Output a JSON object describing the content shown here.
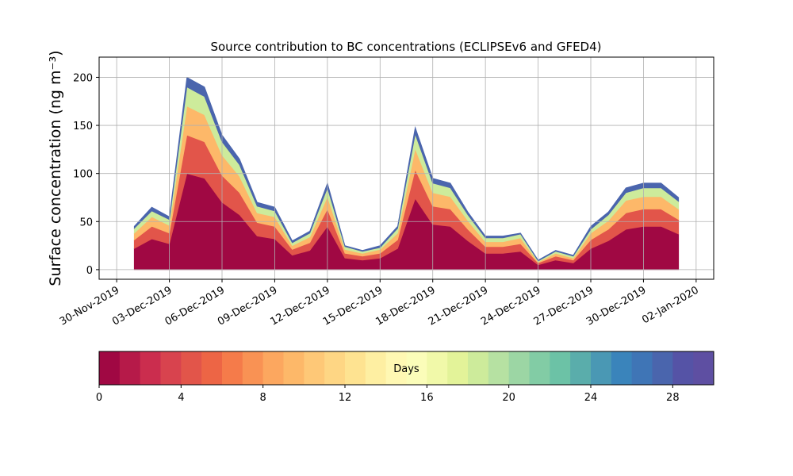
{
  "chart_data": {
    "type": "stacked_area",
    "title": "Source contribution to BC concentrations (ECLIPSEv6 and GFED4)",
    "y_label": "Surface concentration (ng m⁻³)",
    "x": [
      "01-Dec-2019",
      "02-Dec-2019",
      "03-Dec-2019",
      "04-Dec-2019",
      "05-Dec-2019",
      "06-Dec-2019",
      "07-Dec-2019",
      "08-Dec-2019",
      "09-Dec-2019",
      "10-Dec-2019",
      "11-Dec-2019",
      "12-Dec-2019",
      "13-Dec-2019",
      "14-Dec-2019",
      "15-Dec-2019",
      "16-Dec-2019",
      "17-Dec-2019",
      "18-Dec-2019",
      "19-Dec-2019",
      "20-Dec-2019",
      "21-Dec-2019",
      "22-Dec-2019",
      "23-Dec-2019",
      "24-Dec-2019",
      "25-Dec-2019",
      "26-Dec-2019",
      "27-Dec-2019",
      "28-Dec-2019",
      "29-Dec-2019",
      "30-Dec-2019",
      "31-Dec-2019",
      "01-Jan-2020"
    ],
    "series": [
      {
        "color": "#a00843",
        "values": [
          22,
          32,
          27,
          100,
          95,
          70,
          57,
          35,
          32,
          15,
          20,
          45,
          12,
          10,
          12,
          22,
          74,
          47,
          45,
          30,
          17,
          17,
          19,
          5,
          10,
          7,
          22,
          30,
          42,
          45,
          45,
          37
        ]
      },
      {
        "color": "#e2554a",
        "values": [
          9,
          13,
          11,
          40,
          38,
          28,
          23,
          14,
          13,
          6,
          8,
          18,
          5,
          4,
          5,
          9,
          30,
          19,
          18,
          12,
          7,
          7,
          8,
          2,
          4,
          3,
          9,
          12,
          17,
          18,
          18,
          15
        ]
      },
      {
        "color": "#fdb869",
        "values": [
          7,
          10,
          8,
          30,
          28,
          21,
          17,
          10,
          10,
          4,
          6,
          13,
          4,
          3,
          4,
          7,
          22,
          14,
          13,
          9,
          5,
          5,
          6,
          1,
          3,
          2,
          7,
          9,
          13,
          13,
          13,
          11
        ]
      },
      {
        "color": "#cdeb9b",
        "values": [
          5,
          6,
          6,
          20,
          19,
          14,
          12,
          7,
          6,
          3,
          4,
          9,
          3,
          2,
          2,
          5,
          15,
          10,
          9,
          6,
          4,
          4,
          4,
          1,
          2,
          2,
          4,
          6,
          8,
          9,
          9,
          8
        ]
      },
      {
        "color": "#4a65ad",
        "values": [
          2,
          4,
          3,
          10,
          10,
          7,
          6,
          4,
          4,
          2,
          2,
          5,
          1,
          1,
          2,
          2,
          7,
          5,
          5,
          3,
          2,
          2,
          1,
          1,
          1,
          1,
          3,
          3,
          5,
          5,
          5,
          4
        ]
      }
    ],
    "xlim": [
      "29-Nov-2019",
      "03-Jan-2020"
    ],
    "xticks": [
      "30-Nov-2019",
      "03-Dec-2019",
      "06-Dec-2019",
      "09-Dec-2019",
      "12-Dec-2019",
      "15-Dec-2019",
      "18-Dec-2019",
      "21-Dec-2019",
      "24-Dec-2019",
      "27-Dec-2019",
      "30-Dec-2019",
      "02-Jan-2020"
    ],
    "ylim": [
      -10,
      221
    ],
    "yticks": [
      0,
      50,
      100,
      150,
      200
    ],
    "grid": true,
    "colorbar": {
      "label": "Days",
      "lim": [
        0,
        30
      ],
      "ticks": [
        0,
        4,
        8,
        12,
        16,
        20,
        24,
        28
      ],
      "colors": [
        "#a00843",
        "#b61a49",
        "#cb2d4e",
        "#d8434e",
        "#e2554a",
        "#ed6545",
        "#f57b4a",
        "#f99254",
        "#fca75f",
        "#fdb869",
        "#fec877",
        "#fed684",
        "#fee391",
        "#feefa2",
        "#fff8b3",
        "#fbfdb9",
        "#f1f9a9",
        "#e3f399",
        "#cdeb9b",
        "#b6e1a2",
        "#9cd6a4",
        "#82cca5",
        "#6cc2a6",
        "#5aadab",
        "#4a98b4",
        "#3a84bb",
        "#3f75b6",
        "#4a65ad",
        "#5553a6",
        "#5e4fa2"
      ]
    }
  }
}
